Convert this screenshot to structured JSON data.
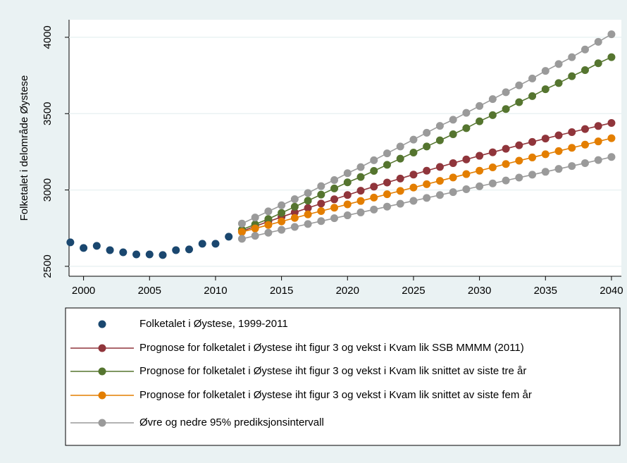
{
  "chart_data": {
    "type": "line",
    "y_label": "Folketalet i delområde Øystese",
    "x": [
      1999,
      2000,
      2001,
      2002,
      2003,
      2004,
      2005,
      2006,
      2007,
      2008,
      2009,
      2010,
      2011,
      2012,
      2013,
      2014,
      2015,
      2016,
      2017,
      2018,
      2019,
      2020,
      2021,
      2022,
      2023,
      2024,
      2025,
      2026,
      2027,
      2028,
      2029,
      2030,
      2031,
      2032,
      2033,
      2034,
      2035,
      2036,
      2037,
      2038,
      2039,
      2040
    ],
    "xlim": [
      1998.9,
      2040.75
    ],
    "xticks": [
      2000,
      2005,
      2010,
      2015,
      2020,
      2025,
      2030,
      2035,
      2040
    ],
    "ylim": [
      2435,
      4115
    ],
    "yticks": [
      2500,
      3000,
      3500,
      4000
    ],
    "grid": true,
    "series": [
      {
        "name": "Folketalet i Øystese, 1999-2011",
        "color": "#1a476f",
        "lines": false,
        "values": [
          2657,
          2620,
          2634,
          2606,
          2592,
          2578,
          2578,
          2574,
          2606,
          2611,
          2648,
          2648,
          2694,
          null,
          null,
          null,
          null,
          null,
          null,
          null,
          null,
          null,
          null,
          null,
          null,
          null,
          null,
          null,
          null,
          null,
          null,
          null,
          null,
          null,
          null,
          null,
          null,
          null,
          null,
          null,
          null,
          null
        ]
      },
      {
        "name": "Prognose for folketalet i Øystese iht figur 3 og vekst i Kvam lik SSB MMMM (2011)",
        "color": "#90353b",
        "lines": true,
        "values": [
          null,
          null,
          null,
          null,
          null,
          null,
          null,
          null,
          null,
          null,
          null,
          null,
          null,
          2730,
          2762,
          2793,
          2823,
          2853,
          2882,
          2911,
          2939,
          2967,
          2995,
          3022,
          3049,
          3075,
          3101,
          3126,
          3151,
          3176,
          3200,
          3224,
          3247,
          3270,
          3293,
          3315,
          3337,
          3358,
          3379,
          3399,
          3419,
          3439
        ]
      },
      {
        "name": "Prognose for folketalet i Øystese iht figur 3 og vekst i Kvam lik snittet av siste tre år",
        "color": "#55752f",
        "lines": true,
        "values": [
          null,
          null,
          null,
          null,
          null,
          null,
          null,
          null,
          null,
          null,
          null,
          null,
          null,
          2740,
          2775,
          2810,
          2850,
          2890,
          2930,
          2970,
          3010,
          3050,
          3085,
          3125,
          3165,
          3205,
          3245,
          3285,
          3325,
          3365,
          3405,
          3450,
          3490,
          3530,
          3575,
          3615,
          3660,
          3700,
          3745,
          3785,
          3830,
          3870
        ]
      },
      {
        "name": "Prognose for folketalet i Øystese iht figur 3 og vekst i Kvam lik snittet av siste fem år",
        "color": "#e37e00",
        "lines": true,
        "values": [
          null,
          null,
          null,
          null,
          null,
          null,
          null,
          null,
          null,
          null,
          null,
          null,
          null,
          2725,
          2748,
          2771,
          2794,
          2817,
          2840,
          2862,
          2884,
          2906,
          2928,
          2950,
          2972,
          2994,
          3016,
          3038,
          3060,
          3082,
          3104,
          3126,
          3148,
          3170,
          3192,
          3213,
          3234,
          3255,
          3276,
          3297,
          3318,
          3339
        ]
      },
      {
        "name": "Øvre og nedre 95% prediksjonsintervall",
        "color": "#9a9a9a",
        "lines": true,
        "values": [
          null,
          null,
          null,
          null,
          null,
          null,
          null,
          null,
          null,
          null,
          null,
          null,
          null,
          2780,
          2820,
          2860,
          2900,
          2940,
          2980,
          3025,
          3065,
          3110,
          3150,
          3195,
          3240,
          3285,
          3330,
          3375,
          3420,
          3460,
          3505,
          3550,
          3595,
          3640,
          3685,
          3730,
          3780,
          3825,
          3870,
          3920,
          3970,
          4020
        ]
      },
      {
        "color": "#9a9a9a",
        "lines": true,
        "values": [
          null,
          null,
          null,
          null,
          null,
          null,
          null,
          null,
          null,
          null,
          null,
          null,
          null,
          2680,
          2700,
          2720,
          2739,
          2758,
          2777,
          2796,
          2815,
          2834,
          2853,
          2872,
          2891,
          2910,
          2929,
          2948,
          2967,
          2986,
          3005,
          3024,
          3043,
          3062,
          3081,
          3100,
          3119,
          3138,
          3157,
          3176,
          3196,
          3216
        ]
      }
    ]
  }
}
